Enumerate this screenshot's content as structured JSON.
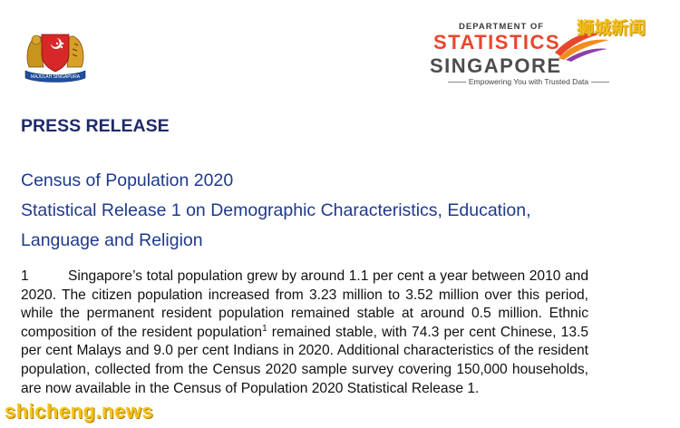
{
  "header": {
    "crest_icon": "singapore-coat-of-arms-icon",
    "crest_motto": "MAJULAH SINGAPURA",
    "dos_logo": {
      "department": "DEPARTMENT OF",
      "statistics": "STATISTICS",
      "singapore": "SINGAPORE",
      "tagline": "Empowering You with Trusted Data",
      "swoosh_icon": "swoosh-icon",
      "statistics_color": "#e8472d",
      "singapore_color": "#4d4d4d"
    }
  },
  "watermarks": {
    "top_right": "狮城新闻",
    "bottom_left": "shicheng.news",
    "color": "#f2c21b"
  },
  "document": {
    "label": "PRESS RELEASE",
    "title_lines": [
      "Census of Population 2020",
      "Statistical Release 1 on Demographic Characteristics, Education,",
      "Language and Religion"
    ],
    "paragraph": {
      "number": "1",
      "text_before_footnote": "Singapore’s total population grew by around 1.1 per cent a year between 2010 and 2020. The citizen population increased from 3.23 million to 3.52 million over this period, while the permanent resident population remained stable at around 0.5 million. Ethnic composition of the resident population",
      "footnote_marker": "1",
      "text_after_footnote": " remained stable, with 74.3 per cent Chinese, 13.5 per cent Malays and 9.0 per cent Indians in 2020. Additional characteristics of the resident population, collected from the Census 2020 sample survey covering 150,000 households, are now available in the Census of Population 2020 Statistical Release 1."
    },
    "heading_color": "#1f2a6b",
    "title_color": "#1f3a8c"
  }
}
